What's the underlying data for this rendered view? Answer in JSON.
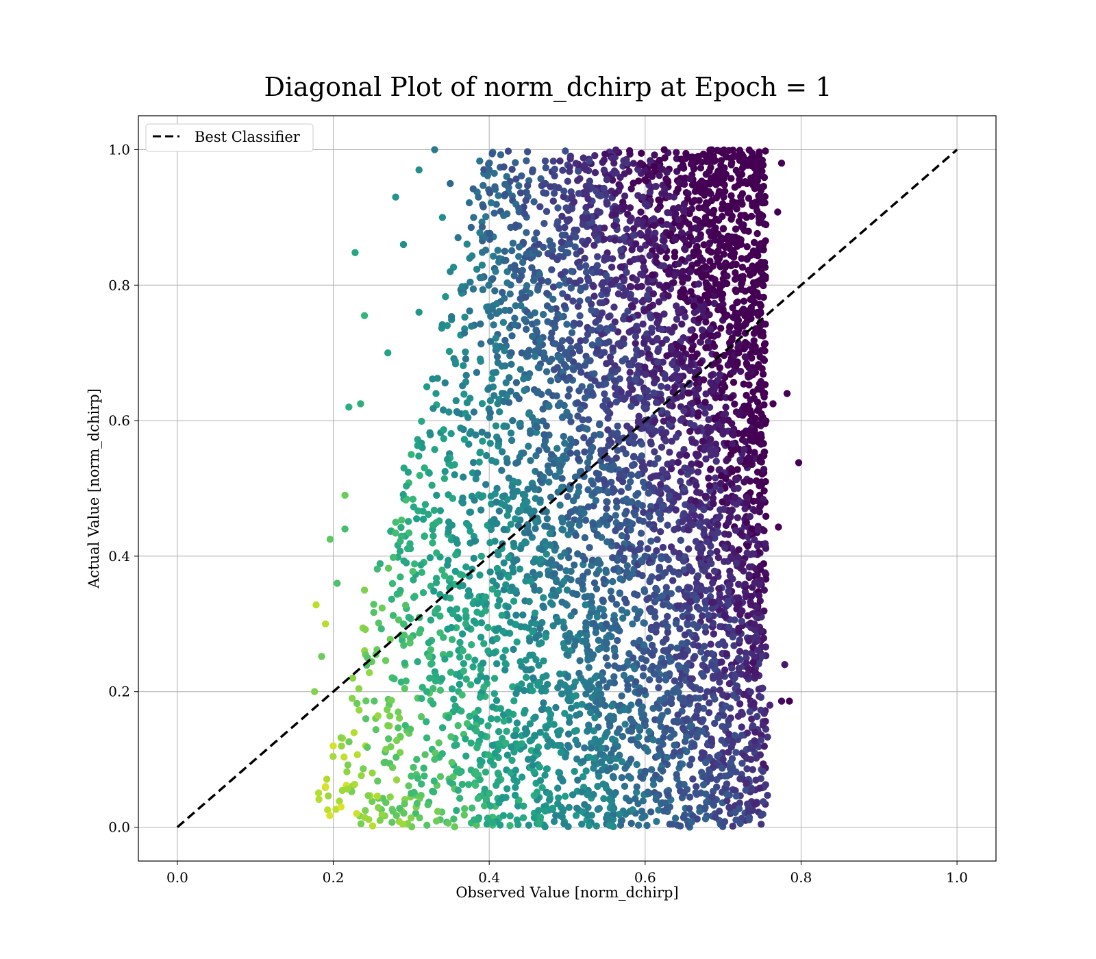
{
  "chart_data": {
    "type": "scatter",
    "title": "Diagonal Plot of norm_dchirp at Epoch = 1",
    "xlabel": "Observed Value [norm_dchirp]",
    "ylabel": "Actual Value [norm_dchirp]",
    "xlim": [
      -0.05,
      1.05
    ],
    "ylim": [
      -0.05,
      1.05
    ],
    "xticks": [
      "0.0",
      "0.2",
      "0.4",
      "0.6",
      "0.8",
      "1.0"
    ],
    "yticks": [
      "0.0",
      "0.2",
      "0.4",
      "0.6",
      "0.8",
      "1.0"
    ],
    "xtick_values": [
      0.0,
      0.2,
      0.4,
      0.6,
      0.8,
      1.0
    ],
    "ytick_values": [
      0.0,
      0.2,
      0.4,
      0.6,
      0.8,
      1.0
    ],
    "grid": true,
    "legend": {
      "position": "top-left",
      "entries": [
        "Best Classifier"
      ]
    },
    "reference_line": {
      "name": "Best Classifier",
      "x": [
        0.0,
        1.0
      ],
      "y": [
        0.0,
        1.0
      ],
      "style": "dashed",
      "color": "#000000"
    },
    "colormap": "viridis",
    "scatter_sample": {
      "note_x_range": [
        0.17,
        0.8
      ],
      "note_y_range": [
        0.0,
        1.0
      ],
      "points": [
        [
          0.228,
          0.848
        ],
        [
          0.24,
          0.755
        ],
        [
          0.176,
          0.2
        ],
        [
          0.178,
          0.328
        ],
        [
          0.196,
          0.425
        ],
        [
          0.797,
          0.538
        ],
        [
          0.785,
          0.186
        ],
        [
          0.775,
          0.186
        ],
        [
          0.779,
          0.24
        ],
        [
          0.782,
          0.64
        ],
        [
          0.775,
          0.98
        ],
        [
          0.77,
          0.908
        ],
        [
          0.771,
          0.443
        ],
        [
          0.764,
          0.625
        ],
        [
          0.76,
          0.18
        ],
        [
          0.757,
          0.133
        ],
        [
          0.757,
          0.047
        ],
        [
          0.185,
          0.252
        ],
        [
          0.19,
          0.3
        ],
        [
          0.205,
          0.36
        ],
        [
          0.215,
          0.49
        ],
        [
          0.22,
          0.62
        ],
        [
          0.235,
          0.625
        ],
        [
          0.28,
          0.93
        ],
        [
          0.29,
          0.86
        ],
        [
          0.31,
          0.97
        ],
        [
          0.33,
          1.0
        ],
        [
          0.34,
          0.9
        ],
        [
          0.35,
          0.95
        ],
        [
          0.36,
          0.87
        ],
        [
          0.215,
          0.44
        ],
        [
          0.225,
          0.22
        ],
        [
          0.2,
          0.12
        ],
        [
          0.19,
          0.06
        ],
        [
          0.21,
          0.03
        ],
        [
          0.23,
          0.02
        ],
        [
          0.26,
          0.01
        ],
        [
          0.3,
          0.05
        ],
        [
          0.27,
          0.15
        ],
        [
          0.25,
          0.08
        ],
        [
          0.33,
          0.1
        ],
        [
          0.32,
          0.2
        ],
        [
          0.29,
          0.3
        ],
        [
          0.24,
          0.35
        ],
        [
          0.28,
          0.45
        ],
        [
          0.3,
          0.55
        ],
        [
          0.32,
          0.65
        ],
        [
          0.27,
          0.7
        ],
        [
          0.31,
          0.76
        ],
        [
          0.35,
          0.82
        ],
        [
          0.38,
          0.9
        ],
        [
          0.4,
          0.97
        ],
        [
          0.42,
          0.85
        ],
        [
          0.44,
          0.78
        ],
        [
          0.43,
          0.6
        ],
        [
          0.41,
          0.5
        ],
        [
          0.39,
          0.4
        ],
        [
          0.37,
          0.3
        ],
        [
          0.36,
          0.15
        ],
        [
          0.4,
          0.05
        ],
        [
          0.45,
          0.1
        ],
        [
          0.5,
          0.2
        ],
        [
          0.55,
          0.3
        ],
        [
          0.6,
          0.4
        ],
        [
          0.65,
          0.5
        ],
        [
          0.7,
          0.6
        ],
        [
          0.72,
          0.7
        ],
        [
          0.74,
          0.8
        ],
        [
          0.73,
          0.9
        ],
        [
          0.68,
          0.95
        ],
        [
          0.62,
          0.85
        ],
        [
          0.58,
          0.75
        ],
        [
          0.53,
          0.65
        ],
        [
          0.48,
          0.55
        ],
        [
          0.46,
          0.45
        ],
        [
          0.5,
          0.35
        ],
        [
          0.55,
          0.25
        ],
        [
          0.6,
          0.15
        ],
        [
          0.65,
          0.05
        ],
        [
          0.7,
          0.1
        ],
        [
          0.72,
          0.2
        ],
        [
          0.74,
          0.3
        ],
        [
          0.73,
          0.45
        ],
        [
          0.71,
          0.55
        ],
        [
          0.69,
          0.65
        ],
        [
          0.66,
          0.72
        ],
        [
          0.63,
          0.82
        ],
        [
          0.6,
          0.92
        ],
        [
          0.56,
          0.98
        ],
        [
          0.52,
          0.9
        ],
        [
          0.49,
          0.8
        ],
        [
          0.47,
          0.7
        ]
      ]
    }
  }
}
